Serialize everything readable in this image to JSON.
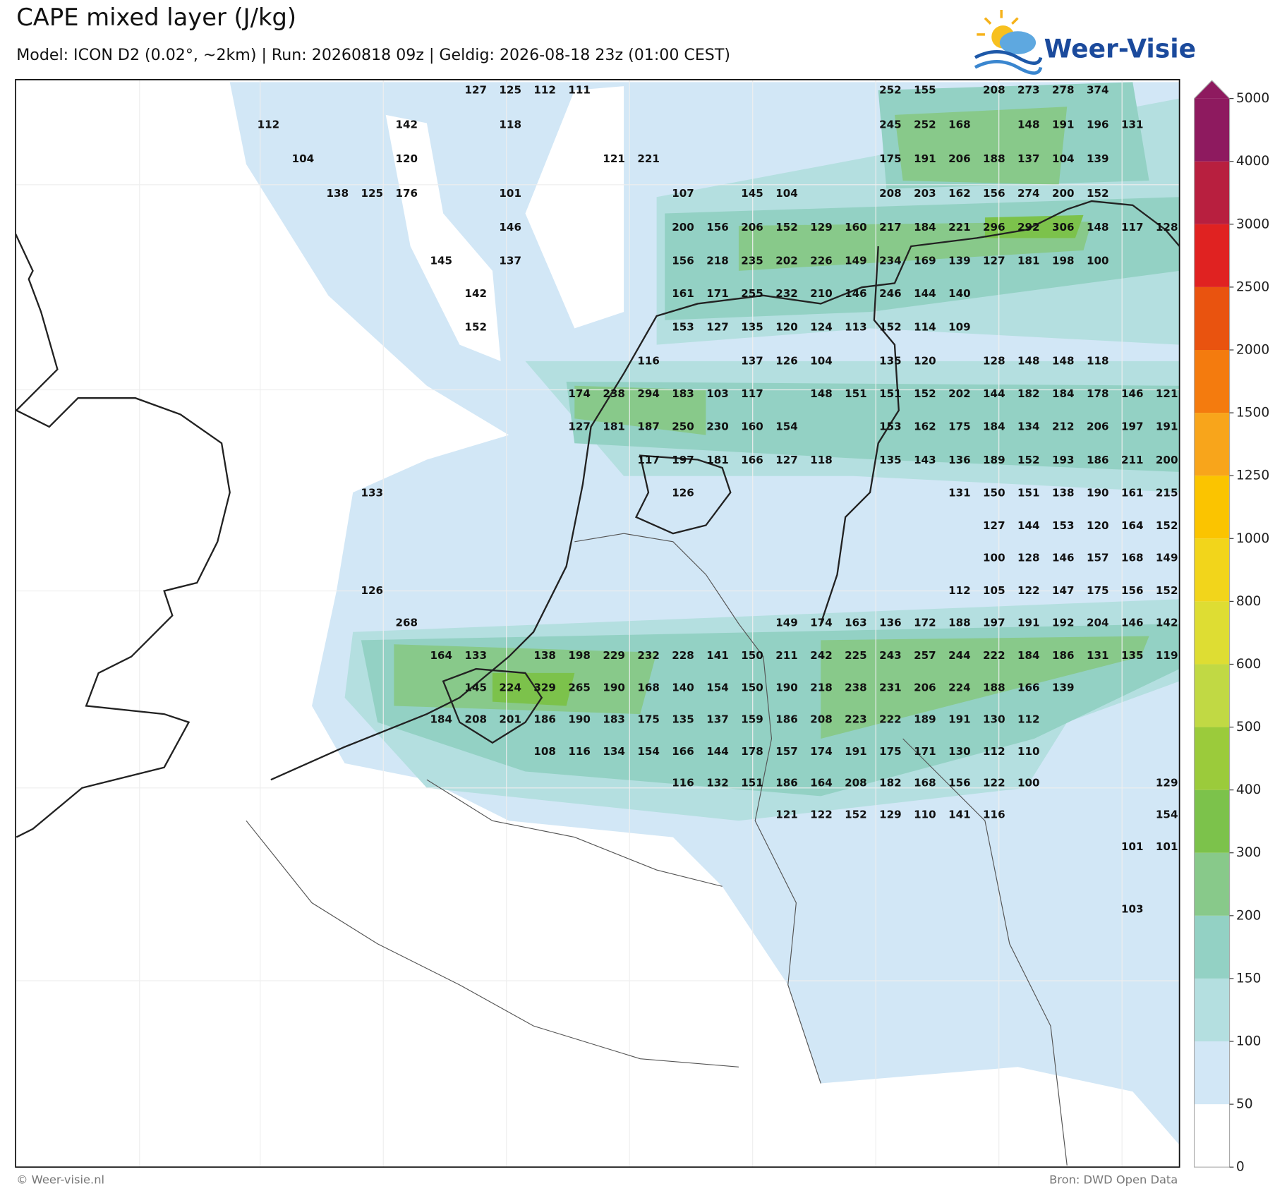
{
  "header": {
    "title": "CAPE mixed layer (J/kg)",
    "subtitle": "Model: ICON D2 (0.02°, ~2km)  |  Run: 20260818 09z  |  Geldig: 2026-08-18 23z (01:00 CEST)",
    "logo": "Weer-Visie"
  },
  "labels": {
    "rows": [
      [
        null,
        null,
        null,
        null,
        null,
        null,
        127,
        125,
        112,
        111,
        null,
        null,
        null,
        null,
        null,
        null,
        null,
        null,
        252,
        155,
        null,
        208,
        273,
        278,
        374,
        null,
        null
      ],
      [
        112,
        null,
        null,
        null,
        142,
        null,
        null,
        118,
        null,
        null,
        null,
        null,
        null,
        null,
        null,
        null,
        null,
        null,
        245,
        252,
        168,
        null,
        148,
        191,
        196,
        131,
        null
      ],
      [
        null,
        104,
        null,
        null,
        120,
        null,
        null,
        null,
        null,
        null,
        121,
        221,
        null,
        null,
        null,
        null,
        null,
        null,
        175,
        191,
        206,
        188,
        137,
        104,
        139,
        null,
        null
      ],
      [
        null,
        null,
        138,
        125,
        176,
        null,
        null,
        101,
        null,
        null,
        null,
        null,
        107,
        null,
        145,
        104,
        null,
        null,
        208,
        203,
        162,
        156,
        274,
        200,
        152,
        null,
        null
      ],
      [
        null,
        null,
        null,
        null,
        null,
        null,
        null,
        146,
        null,
        null,
        null,
        null,
        200,
        156,
        206,
        152,
        129,
        160,
        217,
        184,
        221,
        296,
        292,
        306,
        148,
        117,
        128
      ],
      [
        null,
        null,
        null,
        null,
        null,
        145,
        null,
        137,
        null,
        null,
        null,
        null,
        156,
        218,
        235,
        202,
        226,
        149,
        234,
        169,
        139,
        127,
        181,
        198,
        100,
        null,
        null
      ],
      [
        null,
        null,
        null,
        null,
        null,
        null,
        142,
        null,
        null,
        null,
        null,
        null,
        161,
        171,
        255,
        232,
        210,
        146,
        246,
        144,
        140,
        null,
        null,
        null,
        null,
        null,
        null
      ],
      [
        null,
        null,
        null,
        null,
        null,
        null,
        152,
        null,
        null,
        null,
        null,
        null,
        153,
        127,
        135,
        120,
        124,
        113,
        152,
        114,
        109,
        null,
        null,
        null,
        null,
        null,
        null
      ],
      [
        null,
        null,
        null,
        null,
        null,
        null,
        null,
        null,
        null,
        null,
        null,
        116,
        null,
        null,
        137,
        126,
        104,
        null,
        135,
        120,
        null,
        128,
        148,
        148,
        118,
        null,
        null
      ],
      [
        null,
        null,
        null,
        null,
        null,
        null,
        null,
        null,
        null,
        174,
        238,
        294,
        183,
        103,
        117,
        null,
        148,
        151,
        151,
        152,
        202,
        144,
        182,
        184,
        178,
        146,
        121
      ],
      [
        null,
        null,
        null,
        null,
        null,
        null,
        null,
        null,
        null,
        127,
        181,
        187,
        250,
        230,
        160,
        154,
        null,
        null,
        153,
        162,
        175,
        184,
        134,
        212,
        206,
        197,
        191
      ],
      [
        null,
        null,
        null,
        null,
        null,
        null,
        null,
        null,
        null,
        null,
        null,
        117,
        197,
        181,
        166,
        127,
        118,
        null,
        135,
        143,
        136,
        189,
        152,
        193,
        186,
        211,
        200
      ],
      [
        null,
        null,
        null,
        133,
        null,
        null,
        null,
        null,
        null,
        null,
        null,
        null,
        126,
        null,
        null,
        null,
        null,
        null,
        null,
        null,
        131,
        150,
        151,
        138,
        190,
        161,
        215
      ],
      [
        null,
        null,
        null,
        null,
        null,
        null,
        null,
        null,
        null,
        null,
        null,
        null,
        null,
        null,
        null,
        null,
        null,
        null,
        null,
        null,
        null,
        127,
        144,
        153,
        120,
        164,
        152
      ],
      [
        null,
        null,
        null,
        null,
        null,
        null,
        null,
        null,
        null,
        null,
        null,
        null,
        null,
        null,
        null,
        null,
        null,
        null,
        null,
        null,
        null,
        100,
        128,
        146,
        157,
        168,
        149
      ],
      [
        null,
        null,
        null,
        126,
        null,
        null,
        null,
        null,
        null,
        null,
        null,
        null,
        null,
        null,
        null,
        null,
        null,
        null,
        null,
        null,
        112,
        105,
        122,
        147,
        175,
        156,
        152
      ],
      [
        null,
        null,
        null,
        null,
        268,
        null,
        null,
        null,
        null,
        null,
        null,
        null,
        null,
        null,
        null,
        149,
        174,
        163,
        136,
        172,
        188,
        197,
        191,
        192,
        204,
        146,
        142
      ],
      [
        null,
        null,
        null,
        null,
        null,
        164,
        133,
        null,
        138,
        198,
        229,
        232,
        228,
        141,
        150,
        211,
        242,
        225,
        243,
        257,
        244,
        222,
        184,
        186,
        131,
        135,
        119
      ],
      [
        null,
        null,
        null,
        null,
        null,
        null,
        145,
        224,
        329,
        265,
        190,
        168,
        140,
        154,
        150,
        190,
        218,
        238,
        231,
        206,
        224,
        188,
        166,
        139,
        null,
        null,
        null
      ],
      [
        null,
        null,
        null,
        null,
        null,
        184,
        208,
        201,
        186,
        190,
        183,
        175,
        135,
        137,
        159,
        186,
        208,
        223,
        222,
        189,
        191,
        130,
        112,
        null,
        null,
        null,
        null
      ],
      [
        null,
        null,
        null,
        null,
        null,
        null,
        null,
        null,
        108,
        116,
        134,
        154,
        166,
        144,
        178,
        157,
        174,
        191,
        175,
        171,
        130,
        112,
        110,
        null,
        null,
        null,
        null
      ],
      [
        null,
        null,
        null,
        null,
        null,
        null,
        null,
        null,
        null,
        null,
        null,
        null,
        116,
        132,
        151,
        186,
        164,
        208,
        182,
        168,
        156,
        122,
        100,
        null,
        null,
        null,
        129
      ],
      [
        null,
        null,
        null,
        null,
        null,
        null,
        null,
        null,
        null,
        null,
        null,
        null,
        null,
        null,
        null,
        121,
        122,
        152,
        129,
        110,
        141,
        116,
        null,
        null,
        null,
        null,
        154
      ],
      [
        null,
        null,
        null,
        null,
        null,
        null,
        null,
        null,
        null,
        null,
        null,
        null,
        null,
        null,
        null,
        null,
        null,
        null,
        null,
        null,
        null,
        null,
        null,
        null,
        null,
        101,
        101
      ],
      [
        null,
        null,
        null,
        null,
        null,
        null,
        null,
        null,
        null,
        null,
        null,
        null,
        null,
        null,
        null,
        null,
        null,
        null,
        null,
        null,
        null,
        null,
        null,
        null,
        null,
        null,
        null
      ],
      [
        null,
        null,
        null,
        null,
        null,
        null,
        null,
        null,
        null,
        null,
        null,
        null,
        null,
        null,
        null,
        null,
        null,
        null,
        null,
        null,
        null,
        null,
        null,
        null,
        null,
        103,
        null
      ]
    ]
  },
  "colorbar": {
    "ticks": [
      0,
      50,
      100,
      150,
      200,
      300,
      400,
      500,
      600,
      800,
      1000,
      1250,
      1500,
      2000,
      2500,
      3000,
      4000,
      5000
    ],
    "colors": [
      "#ffffff",
      "#d2e7f6",
      "#b4dfe0",
      "#93d1c4",
      "#88c98a",
      "#7cc24b",
      "#9bcb3b",
      "#c1d944",
      "#dedd33",
      "#f2d51b",
      "#fbc400",
      "#f8a51b",
      "#f47b0e",
      "#e9530f",
      "#e02221",
      "#b81f3f",
      "#8e1a5f"
    ]
  },
  "footer": {
    "left": "© Weer-visie.nl",
    "right": "Bron: DWD Open Data"
  }
}
